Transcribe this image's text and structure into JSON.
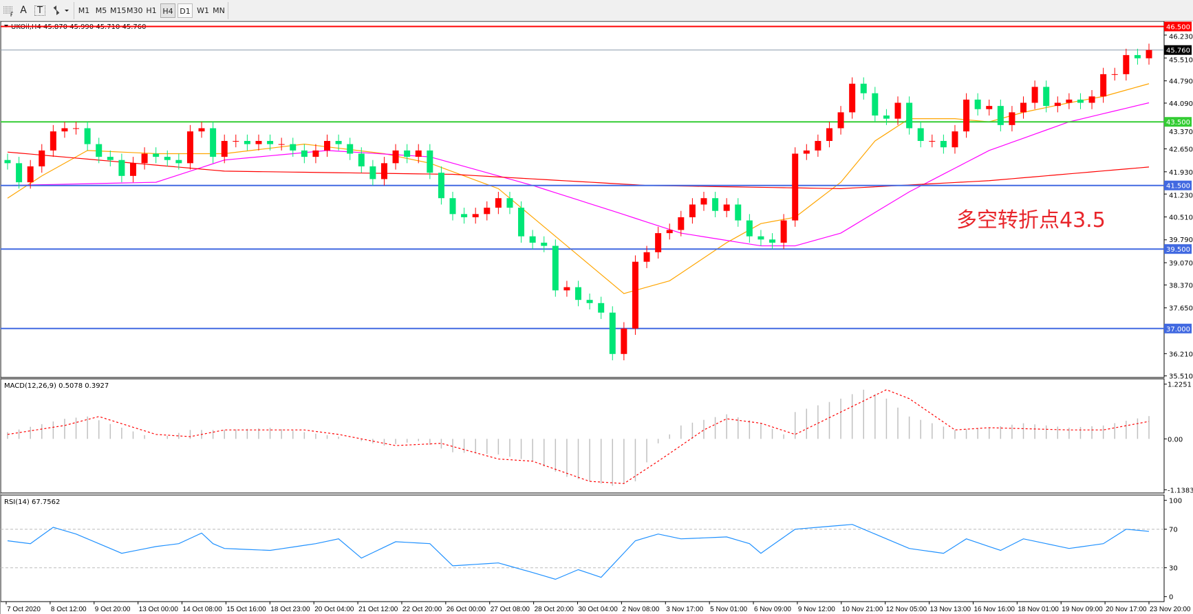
{
  "toolbar": {
    "icons": [
      "grid-f-icon",
      "text-a-icon",
      "text-label-icon",
      "arrows-dropdown-icon"
    ],
    "text_a": "A",
    "text_t": "T",
    "timeframes": [
      "M1",
      "M5",
      "M15",
      "M30",
      "H1",
      "H4",
      "D1",
      "W1",
      "MN"
    ],
    "active_timeframe": "H4"
  },
  "annotation": "多空转折点43.5",
  "chart_data": {
    "type": "candlestick",
    "title": "UKOil,H4  45.870 45.990 45.710 45.760",
    "symbol": "UKOil",
    "timeframe": "H4",
    "last_price": 45.76,
    "ylim": [
      35.51,
      46.5
    ],
    "y_ticks": [
      "46.230",
      "45.510",
      "44.790",
      "44.090",
      "43.370",
      "42.650",
      "41.930",
      "41.230",
      "40.510",
      "39.790",
      "39.070",
      "38.370",
      "37.650",
      "36.210",
      "35.510"
    ],
    "x_ticks": [
      "7 Oct 2020",
      "8 Oct 12:00",
      "9 Oct 20:00",
      "13 Oct 00:00",
      "14 Oct 08:00",
      "15 Oct 16:00",
      "18 Oct 23:00",
      "20 Oct 04:00",
      "21 Oct 12:00",
      "22 Oct 20:00",
      "26 Oct 00:00",
      "27 Oct 08:00",
      "28 Oct 20:00",
      "30 Oct 04:00",
      "2 Nov 08:00",
      "3 Nov 17:00",
      "5 Nov 01:00",
      "6 Nov 09:00",
      "9 Nov 12:00",
      "10 Nov 21:00",
      "12 Nov 05:00",
      "13 Nov 13:00",
      "16 Nov 16:00",
      "18 Nov 01:00",
      "19 Nov 09:00",
      "20 Nov 17:00",
      "23 Nov 20:00"
    ],
    "close": [
      42.2,
      41.6,
      42.1,
      42.6,
      43.2,
      43.3,
      43.3,
      42.8,
      42.4,
      42.3,
      41.8,
      42.2,
      42.5,
      42.4,
      42.3,
      42.2,
      43.2,
      43.3,
      42.4,
      42.9,
      42.9,
      42.8,
      42.9,
      42.8,
      42.8,
      42.6,
      42.4,
      42.6,
      42.9,
      42.8,
      42.5,
      42.1,
      41.7,
      42.2,
      42.6,
      42.4,
      42.6,
      41.9,
      41.1,
      40.6,
      40.5,
      40.6,
      40.8,
      41.1,
      40.8,
      39.9,
      39.7,
      39.6,
      38.2,
      38.3,
      37.9,
      37.8,
      37.5,
      36.2,
      37.0,
      39.1,
      39.4,
      40.0,
      40.1,
      40.5,
      40.9,
      41.1,
      40.7,
      40.9,
      40.4,
      39.9,
      39.8,
      39.7,
      40.4,
      42.5,
      42.6,
      42.9,
      43.3,
      43.8,
      44.7,
      44.4,
      43.7,
      43.6,
      44.1,
      43.3,
      42.9,
      42.9,
      42.7,
      43.2,
      44.2,
      43.9,
      44.0,
      43.4,
      43.8,
      44.1,
      44.6,
      44.0,
      44.1,
      44.2,
      44.1,
      44.3,
      45.0,
      45.0,
      45.6,
      45.5,
      45.76
    ],
    "levels": [
      {
        "price": 46.5,
        "label": "46.500",
        "color": "#ff0000"
      },
      {
        "price": 43.5,
        "label": "43.500",
        "color": "#33cc33"
      },
      {
        "price": 41.5,
        "label": "41.500",
        "color": "#4169e1"
      },
      {
        "price": 39.5,
        "label": "39.500",
        "color": "#4169e1"
      },
      {
        "price": 37.0,
        "label": "37.000",
        "color": "#4169e1"
      }
    ],
    "current_price_label": "45.760",
    "moving_averages": [
      {
        "color": "#ffa500",
        "points": [
          [
            0,
            41.1
          ],
          [
            3,
            41.8
          ],
          [
            7,
            42.6
          ],
          [
            13,
            42.5
          ],
          [
            19,
            42.5
          ],
          [
            26,
            42.8
          ],
          [
            33,
            42.5
          ],
          [
            37,
            42.2
          ],
          [
            43,
            41.4
          ],
          [
            47,
            40.2
          ],
          [
            51,
            39.0
          ],
          [
            54,
            38.1
          ],
          [
            58,
            38.5
          ],
          [
            63,
            39.7
          ],
          [
            66,
            40.3
          ],
          [
            69,
            40.5
          ],
          [
            73,
            41.6
          ],
          [
            76,
            42.9
          ],
          [
            79,
            43.6
          ],
          [
            83,
            43.6
          ],
          [
            86,
            43.5
          ],
          [
            89,
            43.8
          ],
          [
            93,
            44.1
          ],
          [
            96,
            44.3
          ],
          [
            100,
            44.7
          ]
        ]
      },
      {
        "color": "#ff00ff",
        "points": [
          [
            0,
            41.5
          ],
          [
            13,
            41.6
          ],
          [
            19,
            42.3
          ],
          [
            28,
            42.6
          ],
          [
            37,
            42.4
          ],
          [
            46,
            41.5
          ],
          [
            53,
            40.7
          ],
          [
            59,
            40.0
          ],
          [
            66,
            39.6
          ],
          [
            69,
            39.6
          ],
          [
            73,
            40.0
          ],
          [
            79,
            41.3
          ],
          [
            86,
            42.6
          ],
          [
            93,
            43.5
          ],
          [
            100,
            44.1
          ]
        ]
      },
      {
        "color": "#ff0000",
        "points": [
          [
            0,
            42.55
          ],
          [
            19,
            41.95
          ],
          [
            39,
            41.85
          ],
          [
            56,
            41.5
          ],
          [
            73,
            41.4
          ],
          [
            86,
            41.65
          ],
          [
            100,
            42.08
          ]
        ]
      }
    ],
    "up_color": "#ff0000",
    "down_color": "#00e676",
    "macd": {
      "label": "MACD(12,26,9) 0.5078 0.3927",
      "ylim": [
        -1.1383,
        1.2251
      ],
      "y_ticks": [
        "1.2251",
        "0.00",
        "-1.1383"
      ],
      "histogram": [
        [
          0,
          0.15
        ],
        [
          5,
          0.45
        ],
        [
          7,
          0.5
        ],
        [
          10,
          0.25
        ],
        [
          13,
          0.0
        ],
        [
          16,
          0.2
        ],
        [
          19,
          0.2
        ],
        [
          23,
          0.25
        ],
        [
          26,
          0.15
        ],
        [
          29,
          0.05
        ],
        [
          33,
          -0.15
        ],
        [
          36,
          -0.05
        ],
        [
          39,
          -0.3
        ],
        [
          43,
          -0.35
        ],
        [
          46,
          -0.5
        ],
        [
          49,
          -0.85
        ],
        [
          53,
          -1.05
        ],
        [
          55,
          -0.95
        ],
        [
          57,
          -0.1
        ],
        [
          59,
          0.3
        ],
        [
          63,
          0.55
        ],
        [
          66,
          0.35
        ],
        [
          68,
          0.1
        ],
        [
          69,
          0.6
        ],
        [
          73,
          0.9
        ],
        [
          75,
          1.1
        ],
        [
          77,
          0.9
        ],
        [
          79,
          0.5
        ],
        [
          83,
          0.2
        ],
        [
          86,
          0.25
        ],
        [
          89,
          0.35
        ],
        [
          93,
          0.25
        ],
        [
          96,
          0.3
        ],
        [
          100,
          0.51
        ]
      ],
      "signal": [
        [
          0,
          0.1
        ],
        [
          5,
          0.3
        ],
        [
          8,
          0.5
        ],
        [
          13,
          0.1
        ],
        [
          16,
          0.05
        ],
        [
          19,
          0.2
        ],
        [
          26,
          0.2
        ],
        [
          29,
          0.1
        ],
        [
          34,
          -0.15
        ],
        [
          38,
          -0.1
        ],
        [
          43,
          -0.45
        ],
        [
          46,
          -0.5
        ],
        [
          51,
          -0.95
        ],
        [
          54,
          -1.0
        ],
        [
          57,
          -0.5
        ],
        [
          61,
          0.2
        ],
        [
          63,
          0.45
        ],
        [
          66,
          0.35
        ],
        [
          69,
          0.1
        ],
        [
          73,
          0.6
        ],
        [
          77,
          1.1
        ],
        [
          79,
          0.9
        ],
        [
          83,
          0.2
        ],
        [
          86,
          0.25
        ],
        [
          93,
          0.2
        ],
        [
          96,
          0.2
        ],
        [
          100,
          0.39
        ]
      ],
      "hist_color": "#c0c0c0",
      "signal_color": "#ff0000"
    },
    "rsi": {
      "label": "RSI(14) 67.7562",
      "ylim": [
        0,
        100
      ],
      "y_ticks": [
        "100",
        "70",
        "30",
        "0"
      ],
      "levels": [
        70,
        30
      ],
      "color": "#1e90ff",
      "points": [
        [
          0,
          58
        ],
        [
          2,
          55
        ],
        [
          4,
          72
        ],
        [
          6,
          65
        ],
        [
          7,
          60
        ],
        [
          10,
          45
        ],
        [
          13,
          52
        ],
        [
          15,
          55
        ],
        [
          17,
          66
        ],
        [
          18,
          55
        ],
        [
          19,
          50
        ],
        [
          23,
          48
        ],
        [
          27,
          55
        ],
        [
          29,
          60
        ],
        [
          31,
          40
        ],
        [
          34,
          57
        ],
        [
          37,
          55
        ],
        [
          39,
          32
        ],
        [
          43,
          35
        ],
        [
          46,
          25
        ],
        [
          48,
          18
        ],
        [
          50,
          28
        ],
        [
          52,
          20
        ],
        [
          55,
          58
        ],
        [
          57,
          65
        ],
        [
          59,
          60
        ],
        [
          63,
          62
        ],
        [
          65,
          55
        ],
        [
          66,
          45
        ],
        [
          69,
          70
        ],
        [
          71,
          72
        ],
        [
          74,
          75
        ],
        [
          77,
          60
        ],
        [
          79,
          50
        ],
        [
          82,
          45
        ],
        [
          84,
          60
        ],
        [
          87,
          48
        ],
        [
          89,
          60
        ],
        [
          93,
          50
        ],
        [
          96,
          55
        ],
        [
          98,
          70
        ],
        [
          100,
          67.76
        ]
      ]
    }
  }
}
